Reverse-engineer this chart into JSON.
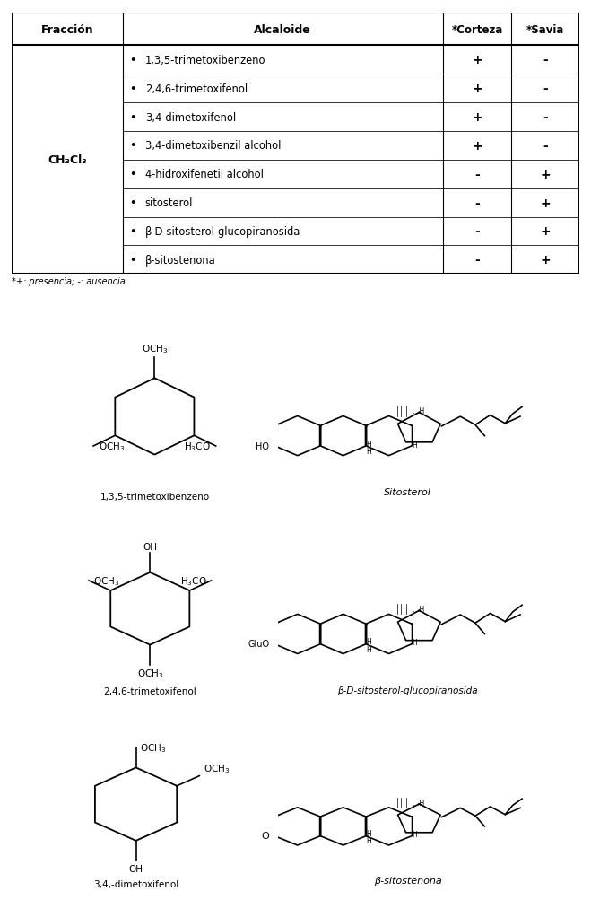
{
  "table_rows": [
    {
      "alcaloide": "1,3,5-trimetoxibenzeno",
      "corteza": "+",
      "savia": "-"
    },
    {
      "alcaloide": "2,4,6-trimetoxifenol",
      "corteza": "+",
      "savia": "-"
    },
    {
      "alcaloide": "3,4-dimetoxifenol",
      "corteza": "+",
      "savia": "-"
    },
    {
      "alcaloide": "3,4-dimetoxibenzil alcohol",
      "corteza": "+",
      "savia": "-"
    },
    {
      "alcaloide": "4-hidroxifenetil alcohol",
      "corteza": "-",
      "savia": "+"
    },
    {
      "alcaloide": "sitosterol",
      "corteza": "-",
      "savia": "+"
    },
    {
      "alcaloide": "β-D-sitosterol-glucopiranosida",
      "corteza": "-",
      "savia": "+"
    },
    {
      "alcaloide": "β-sitostenona",
      "corteza": "-",
      "savia": "+"
    }
  ],
  "fraccion": "CH₃Cl₃",
  "header": [
    "Fracción",
    "Alcaloide",
    "*Corteza",
    "*Savia"
  ],
  "footnote": "*+: presencia; -: ausencia",
  "bg_color": "#ffffff",
  "line_color": "#000000",
  "struct_labels": [
    "1,3,5-trimetoxibenzeno",
    "Sitosterol",
    "2,4,6-trimetoxifenol",
    "β-D-sitosterol-glucopiranosida",
    "3,4,-dimetoxifenol",
    "β-sitostenona"
  ]
}
